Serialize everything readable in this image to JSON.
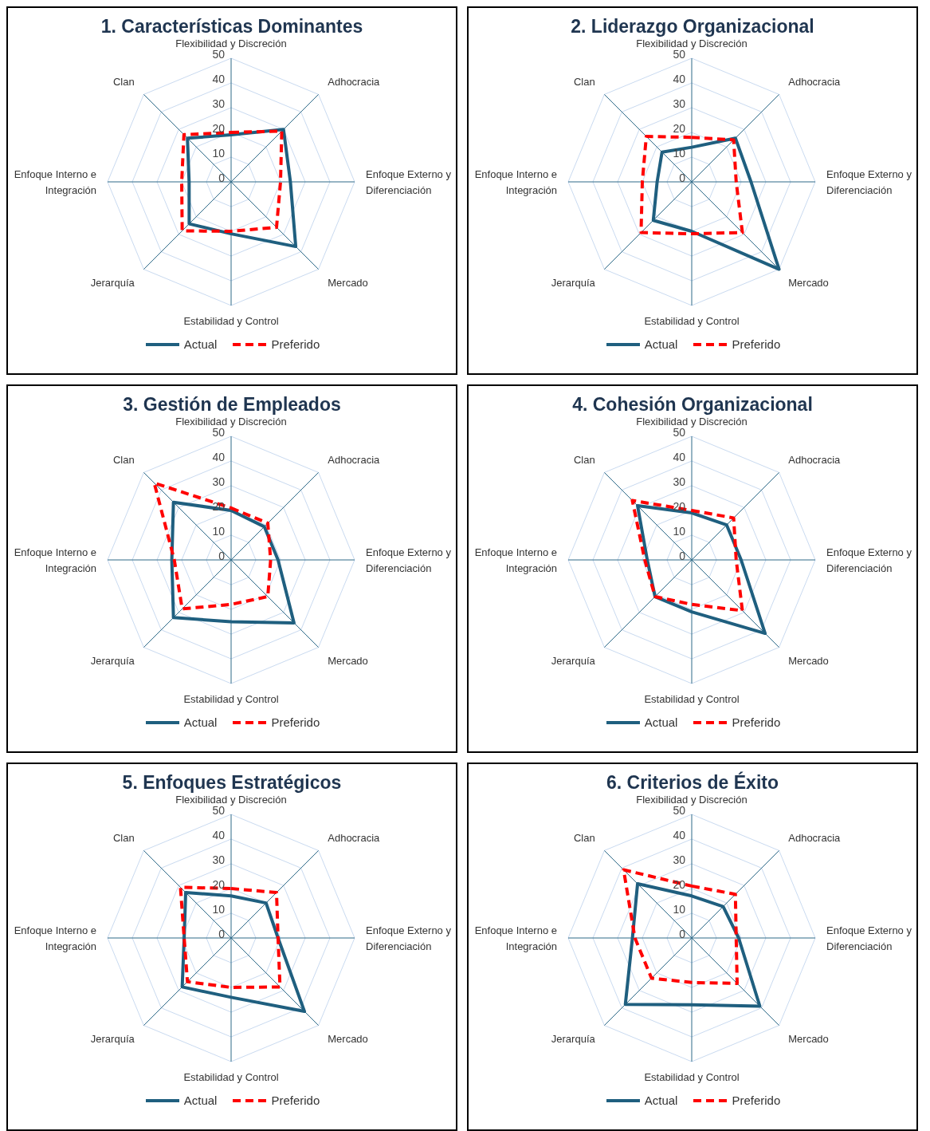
{
  "chart_data": [
    {
      "type": "radar",
      "title": "1. Características Dominantes",
      "categories": [
        "Flexibilidad y Discreción",
        "Adhocracia",
        "Enfoque Externo y Diferenciación",
        "Mercado",
        "Estabilidad y Control",
        "Jerarquía",
        "Enfoque Interno e Integración",
        "Clan"
      ],
      "ylim": [
        0,
        50
      ],
      "yticks": [
        0,
        10,
        20,
        30,
        40,
        50
      ],
      "grid": true,
      "legend": "bottom",
      "series": [
        {
          "name": "Actual",
          "color": "#1f5f7f",
          "line_style": "solid",
          "values": [
            19,
            30,
            24,
            37,
            21,
            24,
            17,
            25
          ]
        },
        {
          "name": "Preferido",
          "color": "#ff0000",
          "line_style": "dashed",
          "values": [
            20,
            29,
            20,
            26,
            20,
            28,
            20,
            27
          ]
        }
      ]
    },
    {
      "type": "radar",
      "title": "2. Liderazgo Organizacional",
      "categories": [
        "Flexibilidad y Discreción",
        "Adhocracia",
        "Enfoque Externo y Diferenciación",
        "Mercado",
        "Estabilidad y Control",
        "Jerarquía",
        "Enfoque Interno e Integración",
        "Clan"
      ],
      "ylim": [
        0,
        50
      ],
      "yticks": [
        0,
        10,
        20,
        30,
        40,
        50
      ],
      "grid": true,
      "legend": "bottom",
      "series": [
        {
          "name": "Actual",
          "color": "#1f5f7f",
          "line_style": "solid",
          "values": [
            14,
            25,
            24,
            50,
            20,
            22,
            14,
            17
          ]
        },
        {
          "name": "Preferido",
          "color": "#ff0000",
          "line_style": "dashed",
          "values": [
            18,
            24,
            18,
            29,
            21,
            29,
            20,
            26
          ]
        }
      ]
    },
    {
      "type": "radar",
      "title": "3. Gestión de Empleados",
      "categories": [
        "Flexibilidad y Discreción",
        "Adhocracia",
        "Enfoque Externo y Diferenciación",
        "Mercado",
        "Estabilidad y Control",
        "Jerarquía",
        "Enfoque Interno e Integración",
        "Clan"
      ],
      "ylim": [
        0,
        50
      ],
      "yticks": [
        0,
        10,
        20,
        30,
        40,
        50
      ],
      "grid": true,
      "legend": "bottom",
      "series": [
        {
          "name": "Actual",
          "color": "#1f5f7f",
          "line_style": "solid",
          "values": [
            20,
            19,
            19,
            36,
            25,
            33,
            24,
            33
          ]
        },
        {
          "name": "Preferido",
          "color": "#ff0000",
          "line_style": "dashed",
          "values": [
            21,
            21,
            16,
            21,
            18,
            28,
            23,
            44
          ]
        }
      ]
    },
    {
      "type": "radar",
      "title": "4. Cohesión Organizacional",
      "categories": [
        "Flexibilidad y Discreción",
        "Adhocracia",
        "Enfoque Externo y Diferenciación",
        "Mercado",
        "Estabilidad y Control",
        "Jerarquía",
        "Enfoque Interno e Integración",
        "Clan"
      ],
      "ylim": [
        0,
        50
      ],
      "yticks": [
        0,
        10,
        20,
        30,
        40,
        50
      ],
      "grid": true,
      "legend": "bottom",
      "series": [
        {
          "name": "Actual",
          "color": "#1f5f7f",
          "line_style": "solid",
          "values": [
            19,
            20,
            20,
            42,
            21,
            21,
            18,
            31
          ]
        },
        {
          "name": "Preferido",
          "color": "#ff0000",
          "line_style": "dashed",
          "values": [
            20,
            24,
            18,
            29,
            18,
            21,
            19,
            34
          ]
        }
      ]
    },
    {
      "type": "radar",
      "title": "5. Enfoques Estratégicos",
      "categories": [
        "Flexibilidad y Discreción",
        "Adhocracia",
        "Enfoque Externo y Diferenciación",
        "Mercado",
        "Estabilidad y Control",
        "Jerarquía",
        "Enfoque Interno e Integración",
        "Clan"
      ],
      "ylim": [
        0,
        50
      ],
      "yticks": [
        0,
        10,
        20,
        30,
        40,
        50
      ],
      "grid": true,
      "legend": "bottom",
      "series": [
        {
          "name": "Actual",
          "color": "#1f5f7f",
          "line_style": "solid",
          "values": [
            17,
            20,
            19,
            42,
            24,
            28,
            19,
            26
          ]
        },
        {
          "name": "Preferido",
          "color": "#ff0000",
          "line_style": "dashed",
          "values": [
            20,
            26,
            19,
            28,
            20,
            25,
            19,
            29
          ]
        }
      ]
    },
    {
      "type": "radar",
      "title": "6. Criterios de Éxito",
      "categories": [
        "Flexibilidad y Discreción",
        "Adhocracia",
        "Enfoque Externo y Diferenciación",
        "Mercado",
        "Estabilidad y Control",
        "Jerarquía",
        "Enfoque Interno e Integración",
        "Clan"
      ],
      "ylim": [
        0,
        50
      ],
      "yticks": [
        0,
        10,
        20,
        30,
        40,
        50
      ],
      "grid": true,
      "legend": "bottom",
      "series": [
        {
          "name": "Actual",
          "color": "#1f5f7f",
          "line_style": "solid",
          "values": [
            17,
            18,
            19,
            39,
            27,
            38,
            24,
            31
          ]
        },
        {
          "name": "Preferido",
          "color": "#ff0000",
          "line_style": "dashed",
          "values": [
            21,
            25,
            18,
            26,
            18,
            23,
            23,
            39
          ]
        }
      ]
    }
  ]
}
